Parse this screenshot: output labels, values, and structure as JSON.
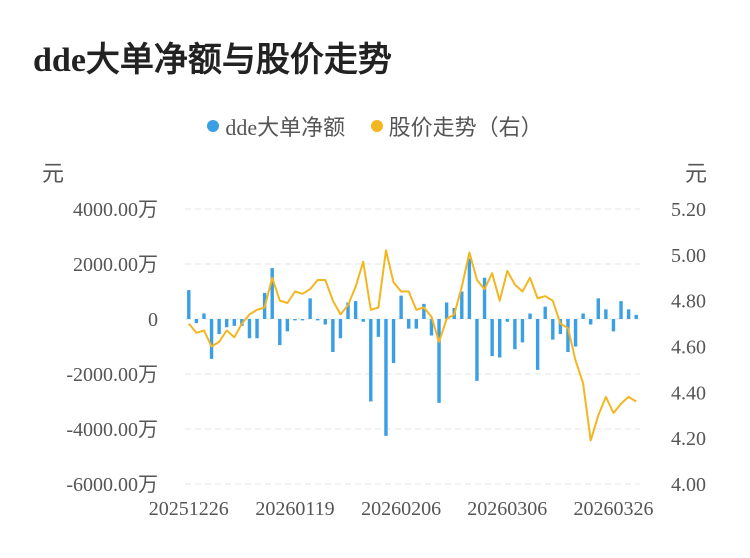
{
  "chart_data": {
    "type": "bar+line",
    "title": "dde大单净额与股价走势",
    "legend": [
      {
        "name": "dde大单净额",
        "color": "#3a9fe4"
      },
      {
        "name": "股价走势（右）",
        "color": "#f4b620"
      }
    ],
    "left_unit": "元",
    "right_unit": "元",
    "y_left": {
      "min": -6000,
      "max": 4000,
      "ticks": [
        "4000.00万",
        "2000.00万",
        "0",
        "-2000.00万",
        "-4000.00万",
        "-6000.00万"
      ],
      "tick_values": [
        4000,
        2000,
        0,
        -2000,
        -4000,
        -6000
      ]
    },
    "y_right": {
      "min": 4.0,
      "max": 5.2,
      "ticks": [
        "5.20",
        "5.00",
        "4.80",
        "4.60",
        "4.40",
        "4.20",
        "4.00"
      ],
      "tick_values": [
        5.2,
        5.0,
        4.8,
        4.6,
        4.4,
        4.2,
        4.0
      ]
    },
    "x_tick_labels": [
      "20251226",
      "20260119",
      "20260206",
      "20260306",
      "20260326"
    ],
    "x_tick_index": [
      0,
      14,
      28,
      42,
      56
    ],
    "series": [
      {
        "name": "dde大单净额",
        "type": "bar",
        "color": "#3a9fe4",
        "values": [
          1050,
          -150,
          200,
          -1450,
          -550,
          -300,
          -250,
          -250,
          -700,
          -700,
          950,
          1850,
          -950,
          -450,
          -50,
          -50,
          750,
          -50,
          -200,
          -1200,
          -700,
          600,
          650,
          -100,
          -3000,
          -650,
          -4250,
          -1600,
          850,
          -350,
          -350,
          550,
          -600,
          -3050,
          600,
          400,
          1000,
          2200,
          -2250,
          1500,
          -1350,
          -1400,
          -100,
          -1100,
          -850,
          200,
          -1850,
          450,
          -750,
          -550,
          -1200,
          -1000,
          200,
          -200,
          750,
          350,
          -450,
          650,
          350,
          150
        ]
      },
      {
        "name": "股价走势（右）",
        "type": "line",
        "color": "#f4b620",
        "values": [
          4.7,
          4.66,
          4.67,
          4.6,
          4.62,
          4.67,
          4.64,
          4.7,
          4.74,
          4.76,
          4.77,
          4.9,
          4.8,
          4.79,
          4.84,
          4.83,
          4.85,
          4.89,
          4.89,
          4.8,
          4.74,
          4.78,
          4.86,
          4.97,
          4.76,
          4.77,
          5.02,
          4.88,
          4.84,
          4.84,
          4.76,
          4.77,
          4.73,
          4.62,
          4.72,
          4.74,
          4.86,
          5.01,
          4.89,
          4.85,
          4.92,
          4.8,
          4.93,
          4.87,
          4.84,
          4.9,
          4.81,
          4.82,
          4.8,
          4.7,
          4.68,
          4.54,
          4.44,
          4.19,
          4.3,
          4.38,
          4.31,
          4.35,
          4.38,
          4.36
        ]
      }
    ]
  }
}
